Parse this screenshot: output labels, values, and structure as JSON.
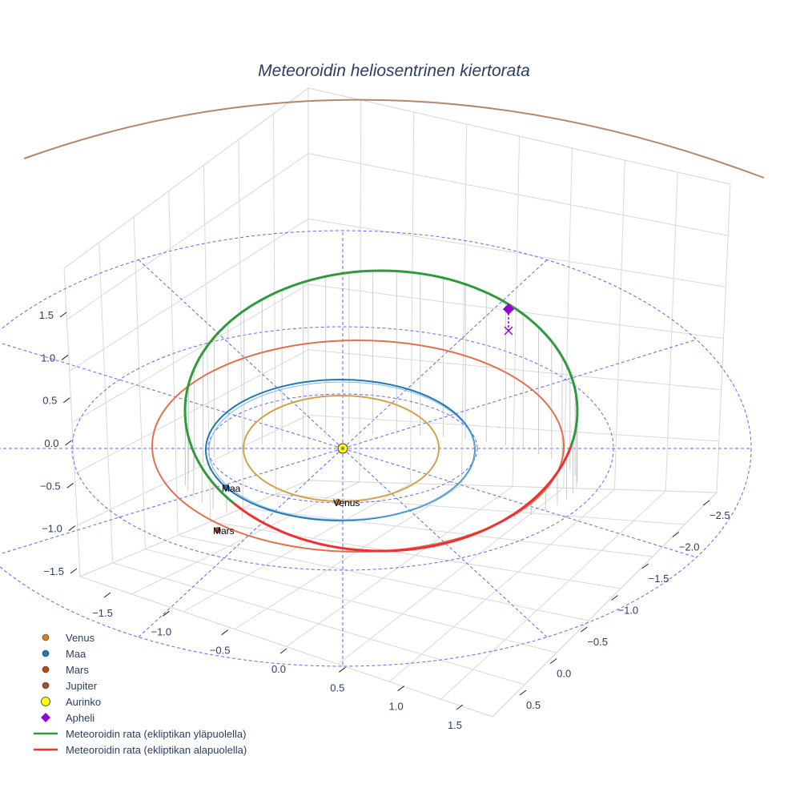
{
  "chart_data": {
    "type": "scatter3d",
    "title": "Meteoroidin heliosentrinen kiertorata",
    "axes": {
      "x_ticks": [
        "−1.5",
        "−1.0",
        "−0.5",
        "0.0",
        "0.5",
        "1.0",
        "1.5"
      ],
      "y_ticks": [
        "−2.5",
        "−2.0",
        "−1.5",
        "−1.0",
        "−0.5",
        "0.0",
        "0.5"
      ],
      "z_ticks": [
        "1.5",
        "1.0",
        "0.5",
        "0.0",
        "−0.5",
        "−1.0",
        "−1.5"
      ]
    },
    "planet_orbits": [
      {
        "name": "Venus",
        "color": "#D4A04A",
        "radius_au": 0.72
      },
      {
        "name": "Maa",
        "color": "#1F77B4",
        "radius_au": 1.0
      },
      {
        "name": "Mars",
        "color": "#E07050",
        "radius_au": 1.52
      },
      {
        "name": "Jupiter",
        "color": "#B5876A",
        "radius_au": 5.2
      }
    ],
    "planet_markers": [
      {
        "name": "Venus",
        "label": "Venus",
        "color": "#D4821A"
      },
      {
        "name": "Maa",
        "label": "Maa",
        "color": "#1F77B4"
      },
      {
        "name": "Mars",
        "label": "Mars",
        "color": "#C1440E"
      }
    ],
    "ecliptic_grid": {
      "circle_radii_au": [
        1,
        2,
        3
      ],
      "color": "#6666EE"
    },
    "meteoroid_orbit": {
      "above_color": "#2E9B3A",
      "below_color": "#EE3030",
      "aphelion_marker": {
        "label": "Apheli",
        "color": "#9400D3"
      }
    },
    "legend": [
      {
        "label": "Venus",
        "type": "marker",
        "color": "#D4821A"
      },
      {
        "label": "Maa",
        "type": "marker",
        "color": "#1F77B4"
      },
      {
        "label": "Mars",
        "type": "marker",
        "color": "#C1440E"
      },
      {
        "label": "Jupiter",
        "type": "marker",
        "color": "#A0522D"
      },
      {
        "label": "Aurinko",
        "type": "sun",
        "color": "#FFFF00"
      },
      {
        "label": "Apheli",
        "type": "diamond",
        "color": "#9400D3"
      },
      {
        "label": "Meteoroidin rata (ekliptikan yläpuolella)",
        "type": "line",
        "color": "#2E9B3A"
      },
      {
        "label": "Meteoroidin rata (ekliptikan alapuolella)",
        "type": "line",
        "color": "#EE3030"
      }
    ]
  }
}
